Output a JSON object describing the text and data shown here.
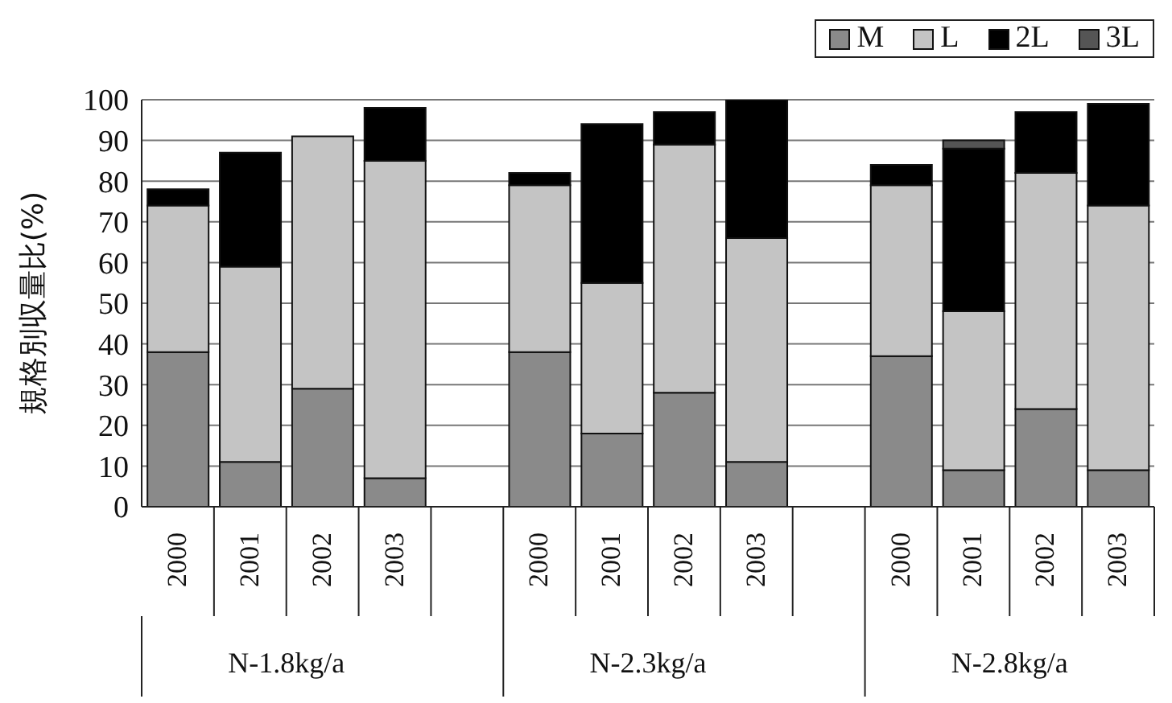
{
  "chart_data": {
    "type": "bar",
    "stacked": true,
    "ylabel": "規格別収量比(%)",
    "categories": [
      "2000",
      "2001",
      "2002",
      "2003",
      null,
      "2000",
      "2001",
      "2002",
      "2003",
      null,
      "2000",
      "2001",
      "2002",
      "2003"
    ],
    "series": [
      {
        "name": "M",
        "color": "#8a8a8a",
        "values": [
          38,
          11,
          29,
          7,
          null,
          38,
          18,
          28,
          11,
          null,
          37,
          9,
          24,
          9
        ]
      },
      {
        "name": "L",
        "color": "#c4c4c4",
        "values": [
          36,
          48,
          62,
          78,
          null,
          41,
          37,
          61,
          55,
          null,
          42,
          39,
          58,
          65
        ]
      },
      {
        "name": "2L",
        "color": "#000000",
        "values": [
          4,
          28,
          null,
          13,
          null,
          3,
          39,
          8,
          34,
          null,
          5,
          40,
          15,
          25
        ]
      },
      {
        "name": "3L",
        "color": "#555555",
        "values": [
          null,
          null,
          null,
          null,
          null,
          null,
          null,
          null,
          null,
          null,
          null,
          2,
          null,
          null
        ]
      }
    ],
    "ylim": [
      0,
      100
    ],
    "yticks": [
      0,
      10,
      20,
      30,
      40,
      50,
      60,
      70,
      80,
      90,
      100
    ],
    "grid": "y",
    "legend": "top right",
    "annotations": [
      "N-1.8kg/a",
      "N-2.3kg/a",
      "N-2.8kg/a"
    ]
  }
}
